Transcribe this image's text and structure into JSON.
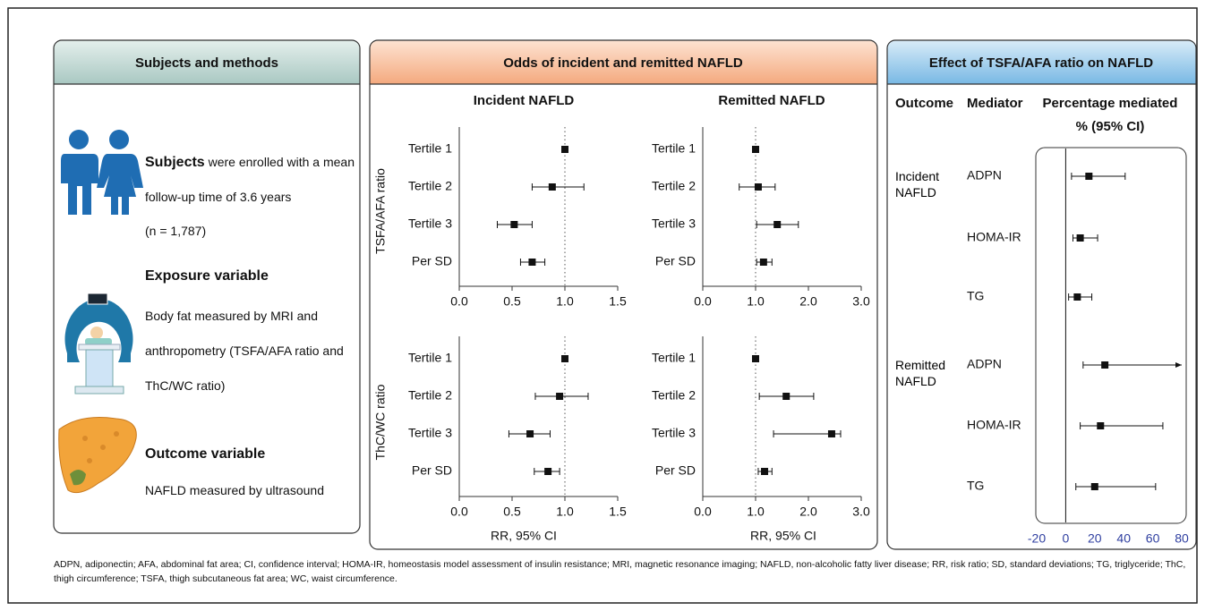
{
  "subjects": {
    "title": "Subjects and methods",
    "subjects_heading": "Subjects",
    "subjects_text": "were enrolled with a mean follow-up time of 3.6 years",
    "subjects_n": "(n = 1,787)",
    "exposure_heading": "Exposure variable",
    "exposure_text": "Body fat measured by MRI and anthropometry (TSFA/AFA ratio and ThC/WC ratio)",
    "outcome_heading": "Outcome variable",
    "outcome_text": "NAFLD measured by ultrasound"
  },
  "odds": {
    "title": "Odds of incident and remitted NAFLD",
    "columns": [
      "Incident NAFLD",
      "Remitted NAFLD"
    ],
    "rows": [
      "TSFA/AFA ratio",
      "ThC/WC ratio"
    ],
    "x_label": "RR, 95% CI",
    "plots": [
      {
        "categories": [
          "Tertile 1",
          "Tertile 2",
          "Tertile 3",
          "Per SD"
        ],
        "values": [
          1.0,
          0.88,
          0.52,
          0.69
        ],
        "lower": [
          null,
          0.69,
          0.36,
          0.58
        ],
        "upper": [
          null,
          1.18,
          0.69,
          0.81
        ],
        "xlim": [
          0,
          1.5
        ],
        "xticks": [
          {
            "value": 0,
            "label": "0.0"
          },
          {
            "value": 0.5,
            "label": "0.5"
          },
          {
            "value": 1,
            "label": "1.0"
          },
          {
            "value": 1.5,
            "label": "1.5"
          }
        ],
        "reference": 1
      },
      {
        "categories": [
          "Tertile 1",
          "Tertile 2",
          "Tertile 3",
          "Per SD"
        ],
        "values": [
          1.0,
          1.05,
          1.41,
          1.15
        ],
        "lower": [
          null,
          0.69,
          1.02,
          1.02
        ],
        "upper": [
          null,
          1.37,
          1.81,
          1.31
        ],
        "xlim": [
          0,
          3
        ],
        "xticks": [
          {
            "value": 0,
            "label": "0.0"
          },
          {
            "value": 1,
            "label": "1.0"
          },
          {
            "value": 2,
            "label": "2.0"
          },
          {
            "value": 3,
            "label": "3.0"
          }
        ],
        "reference": 1
      },
      {
        "categories": [
          "Tertile 1",
          "Tertile 2",
          "Tertile 3",
          "Per SD"
        ],
        "values": [
          1.0,
          0.95,
          0.67,
          0.84
        ],
        "lower": [
          null,
          0.72,
          0.47,
          0.71
        ],
        "upper": [
          null,
          1.22,
          0.86,
          0.95
        ],
        "xlim": [
          0,
          1.5
        ],
        "xticks": [
          {
            "value": 0,
            "label": "0.0"
          },
          {
            "value": 0.5,
            "label": "0.5"
          },
          {
            "value": 1,
            "label": "1.0"
          },
          {
            "value": 1.5,
            "label": "1.5"
          }
        ],
        "reference": 1
      },
      {
        "categories": [
          "Tertile 1",
          "Tertile 2",
          "Tertile 3",
          "Per SD"
        ],
        "values": [
          1.0,
          1.58,
          2.44,
          1.17
        ],
        "lower": [
          null,
          1.07,
          1.34,
          1.05
        ],
        "upper": [
          null,
          2.1,
          2.61,
          1.31
        ],
        "xlim": [
          0,
          3
        ],
        "xticks": [
          {
            "value": 0,
            "label": "0.0"
          },
          {
            "value": 1,
            "label": "1.0"
          },
          {
            "value": 2,
            "label": "2.0"
          },
          {
            "value": 3,
            "label": "3.0"
          }
        ],
        "reference": 1
      }
    ]
  },
  "mediation": {
    "title": "Effect of TSFA/AFA ratio on NAFLD",
    "headers": [
      "Outcome",
      "Mediator",
      "Percentage mediated",
      "% (95% CI)"
    ],
    "groups": [
      {
        "outcome": "Incident NAFLD",
        "mediators": [
          "ADPN",
          "HOMA-IR",
          "TG"
        ],
        "values": [
          16,
          10,
          8
        ],
        "lower": [
          4,
          5,
          2
        ],
        "upper": [
          41,
          22,
          18
        ]
      },
      {
        "outcome": "Remitted NAFLD",
        "mediators": [
          "ADPN",
          "HOMA-IR",
          "TG"
        ],
        "values": [
          27,
          24,
          20
        ],
        "lower": [
          12,
          10,
          7
        ],
        "upper": [
          80,
          67,
          62
        ]
      }
    ],
    "xlim": [
      -20,
      80
    ],
    "xticks": [
      -20,
      0,
      20,
      40,
      60,
      80
    ],
    "reference": 0
  },
  "footnote": "ADPN, adiponectin; AFA, abdominal fat area; CI, confidence interval; HOMA-IR, homeostasis model assessment of insulin resistance; MRI, magnetic resonance imaging; NAFLD, non-alcoholic fatty liver disease; RR, risk ratio; SD, standard deviations; TG, triglyceride; ThC, thigh circumference; TSFA, thigh subcutaneous fat area; WC, waist circumference."
}
